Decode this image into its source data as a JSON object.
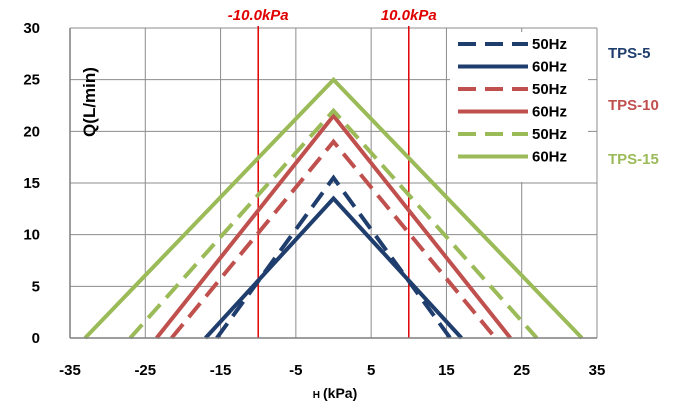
{
  "chart_data": {
    "type": "line",
    "title": "",
    "xlabel_prefix": "H",
    "xlabel": "(kPa)",
    "ylabel": "Q(L/min)",
    "xlim": [
      -35,
      35
    ],
    "ylim": [
      0,
      30
    ],
    "xticks": [
      -35,
      -25,
      -15,
      -5,
      5,
      15,
      25,
      35
    ],
    "yticks": [
      0,
      5,
      10,
      15,
      20,
      25,
      30
    ],
    "grid": true,
    "legend_position": "top-right",
    "series": [
      {
        "name": "50Hz",
        "group": "TPS-5",
        "color": "#1f3e6e",
        "dash": true,
        "x": [
          -15.5,
          0,
          15.5
        ],
        "y": [
          0,
          15.5,
          0
        ]
      },
      {
        "name": "60Hz",
        "group": "TPS-5",
        "color": "#1f3e6e",
        "dash": false,
        "x": [
          -17,
          0,
          17
        ],
        "y": [
          0,
          13.5,
          0
        ]
      },
      {
        "name": "50Hz",
        "group": "TPS-10",
        "color": "#c0504d",
        "dash": true,
        "x": [
          -21.5,
          0,
          21.5
        ],
        "y": [
          0,
          19,
          0
        ]
      },
      {
        "name": "60Hz",
        "group": "TPS-10",
        "color": "#c0504d",
        "dash": false,
        "x": [
          -23.5,
          0,
          23.5
        ],
        "y": [
          0,
          21.5,
          0
        ]
      },
      {
        "name": "50Hz",
        "group": "TPS-15",
        "color": "#9bbb59",
        "dash": true,
        "x": [
          -27,
          0,
          27
        ],
        "y": [
          0,
          22,
          0
        ]
      },
      {
        "name": "60Hz",
        "group": "TPS-15",
        "color": "#9bbb59",
        "dash": false,
        "x": [
          -33,
          0,
          33
        ],
        "y": [
          0,
          25,
          0
        ]
      }
    ],
    "groups": [
      {
        "label": "TPS-5",
        "color": "#1f3e6e"
      },
      {
        "label": "TPS-10",
        "color": "#c0504d"
      },
      {
        "label": "TPS-15",
        "color": "#9bbb59"
      }
    ],
    "vlines": [
      {
        "x": -10,
        "label": "-10.0kPa",
        "color": "#e00000"
      },
      {
        "x": 10,
        "label": "10.0kPa",
        "color": "#e00000"
      }
    ]
  }
}
